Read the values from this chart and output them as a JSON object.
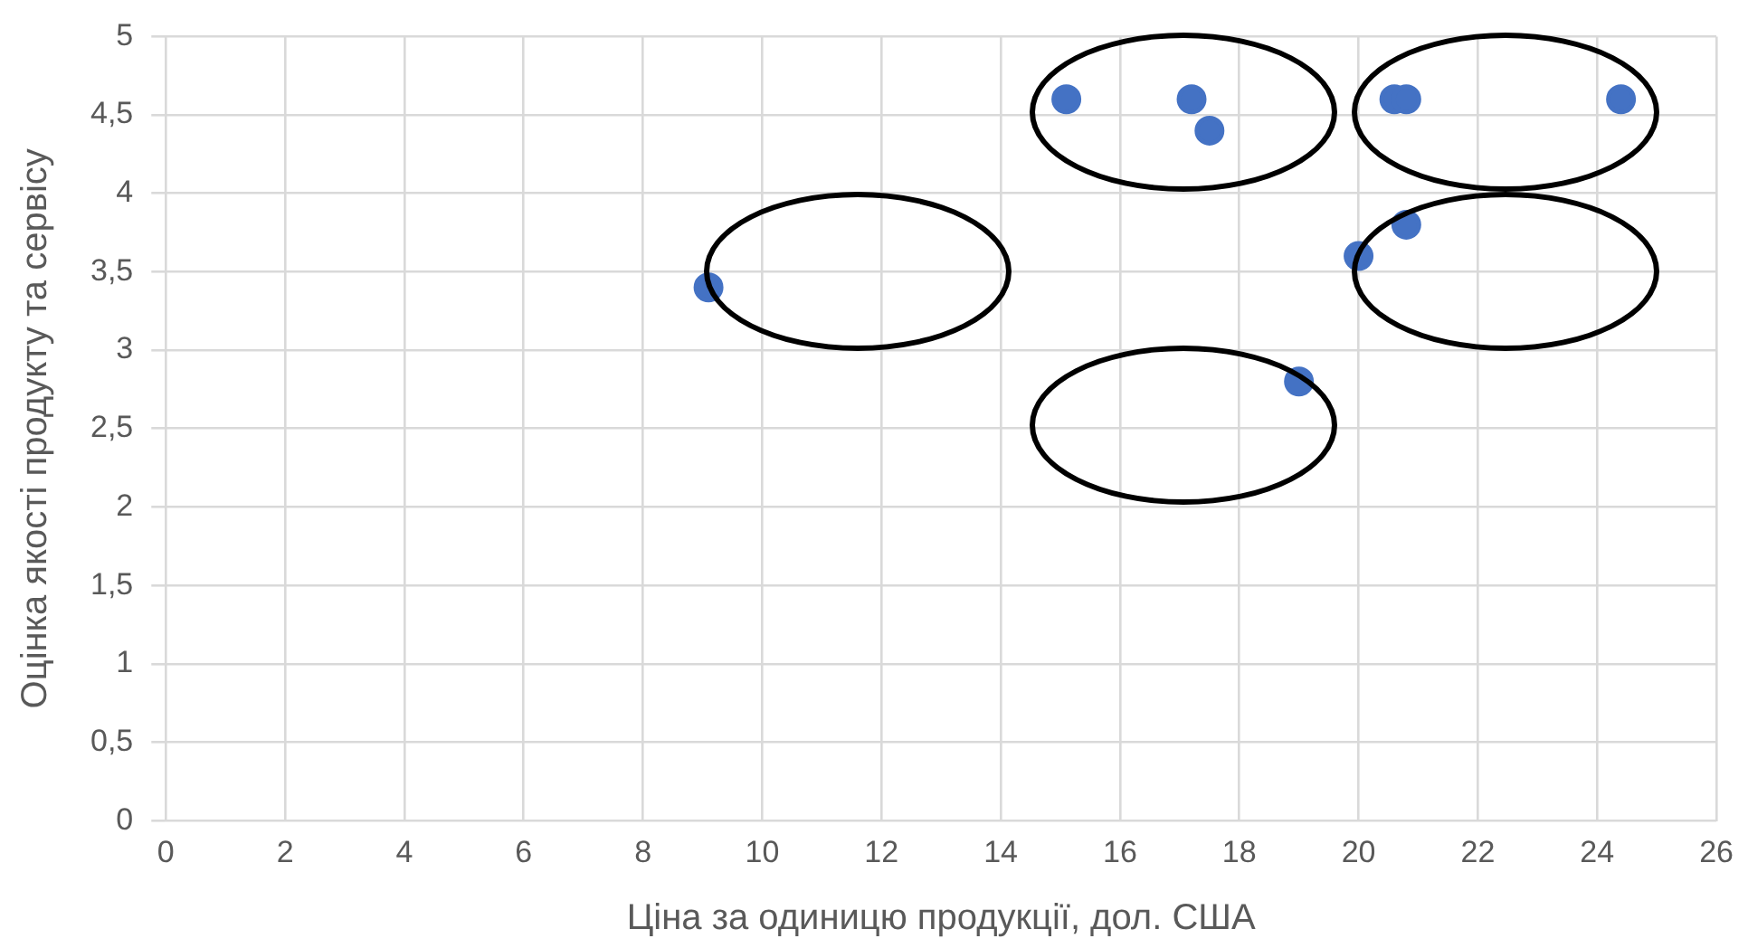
{
  "chart_data": {
    "type": "scatter",
    "xlabel": "Ціна за одиницю продукції, дол. США",
    "ylabel": "Оцінка якості продукту та сервісу",
    "x": [
      9.1,
      15.1,
      17.2,
      17.5,
      19,
      20,
      20.8,
      20.6,
      20.8,
      24.4
    ],
    "series": [
      {
        "color": "#4472c4",
        "values": [
          3.4,
          4.6,
          4.6,
          4.4,
          2.8,
          3.6,
          3.8,
          4.6,
          4.6,
          4.6
        ]
      }
    ],
    "xlim": [
      0,
      26
    ],
    "xticks": [
      0,
      2,
      4,
      6,
      8,
      10,
      12,
      14,
      16,
      18,
      20,
      22,
      24,
      26
    ],
    "ylim": [
      0,
      5
    ],
    "yticks": [
      0,
      {
        "value": 0.5,
        "label": "0,5"
      },
      1,
      {
        "value": 1.5,
        "label": "1,5"
      },
      2,
      {
        "value": 2.5,
        "label": "2,5"
      },
      3,
      {
        "value": 3.5,
        "label": "3,5"
      },
      4,
      {
        "value": 4.5,
        "label": "4,5"
      },
      5
    ],
    "grid": true,
    "legend": false,
    "marker": "circle"
  }
}
